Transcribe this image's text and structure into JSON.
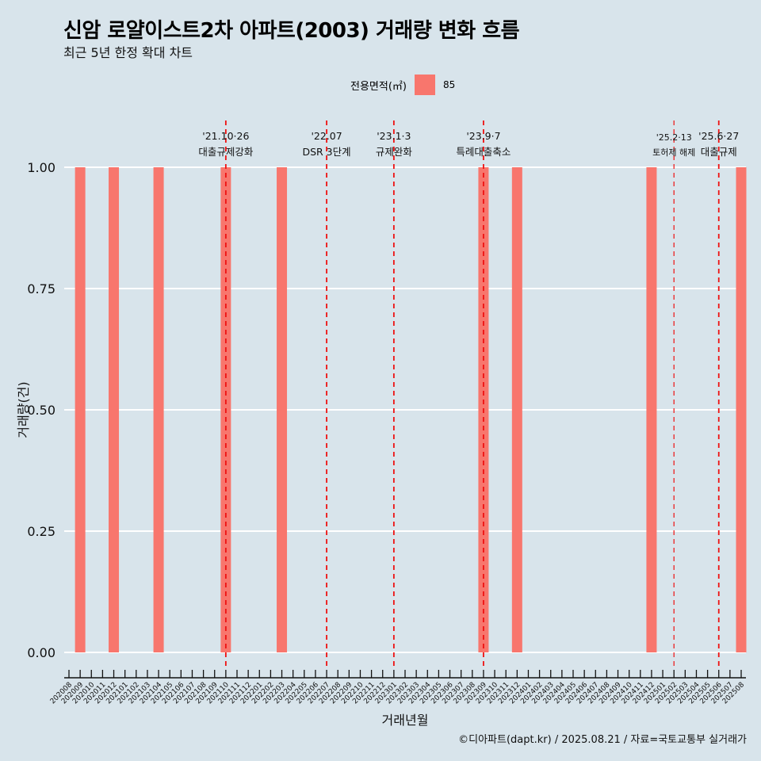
{
  "title": "신암 로얄이스트2차 아파트(2003) 거래량 변화 흐름",
  "subtitle": "최근 5년 한정 확대 차트",
  "caption": "©디아파트(dapt.kr) / 2025.08.21 / 자료=국토교통부 실거래가",
  "legend": {
    "title": "전용면적(㎡)",
    "items": [
      {
        "label": "85",
        "color": "#f8766d"
      }
    ]
  },
  "chart_data": {
    "type": "bar",
    "title": "신암 로얄이스트2차 아파트(2003) 거래량 변화 흐름",
    "xlabel": "거래년월",
    "ylabel": "거래량(건)",
    "ylim": [
      0,
      1
    ],
    "yticks": [
      "0.00",
      "0.25",
      "0.50",
      "0.75",
      "1.00"
    ],
    "categories": [
      "202008",
      "202009",
      "202010",
      "202011",
      "202012",
      "202101",
      "202102",
      "202103",
      "202104",
      "202105",
      "202106",
      "202107",
      "202108",
      "202109",
      "202110",
      "202111",
      "202112",
      "202201",
      "202202",
      "202203",
      "202204",
      "202205",
      "202206",
      "202207",
      "202208",
      "202209",
      "202210",
      "202211",
      "202212",
      "202301",
      "202302",
      "202303",
      "202304",
      "202305",
      "202306",
      "202307",
      "202308",
      "202309",
      "202310",
      "202311",
      "202312",
      "202401",
      "202402",
      "202403",
      "202404",
      "202405",
      "202406",
      "202407",
      "202408",
      "202409",
      "202410",
      "202411",
      "202412",
      "202501",
      "202502",
      "202503",
      "202504",
      "202505",
      "202506",
      "202507",
      "202508"
    ],
    "series": [
      {
        "name": "85",
        "color": "#f8766d",
        "points": {
          "202009": 1,
          "202012": 1,
          "202104": 1,
          "202110": 1,
          "202203": 1,
          "202309": 1,
          "202312": 1,
          "202412": 1,
          "202508": 1
        }
      }
    ],
    "annotations": [
      {
        "at": "202110",
        "date": "'21.10·26",
        "label": "대출규제강화"
      },
      {
        "at": "202207",
        "date": "'22.07",
        "label": "DSR 3단계"
      },
      {
        "at": "202301",
        "date": "'23.1·3",
        "label": "규제완화"
      },
      {
        "at": "202309",
        "date": "'23.9·7",
        "label": "특례대출축소"
      },
      {
        "at": "202502",
        "date": "'25.2·13",
        "label": "토허제 해제",
        "small": true
      },
      {
        "at": "202506",
        "date": "'25.6·27",
        "label": "대출규제"
      }
    ]
  }
}
